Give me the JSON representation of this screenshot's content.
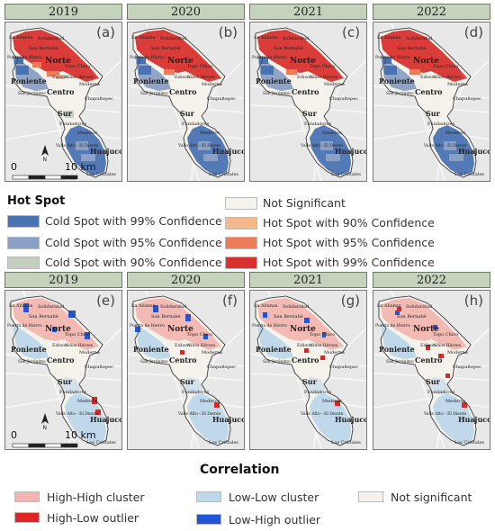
{
  "top_row": {
    "panels": [
      {
        "year": "2019",
        "letter": "(a)",
        "scale": true
      },
      {
        "year": "2020",
        "letter": "(b)",
        "scale": false
      },
      {
        "year": "2021",
        "letter": "(c)",
        "scale": false
      },
      {
        "year": "2022",
        "letter": "(d)",
        "scale": false
      }
    ]
  },
  "bottom_row": {
    "panels": [
      {
        "year": "2019",
        "letter": "(e)",
        "scale": true
      },
      {
        "year": "2020",
        "letter": "(f)",
        "scale": false
      },
      {
        "year": "2021",
        "letter": "(g)",
        "scale": false
      },
      {
        "year": "2022",
        "letter": "(h)",
        "scale": false
      }
    ]
  },
  "scale": {
    "left_label": "0",
    "right_label": "10 km",
    "north": "N"
  },
  "place_labels": {
    "la_alianza": "La Alianza",
    "solidaridad": "Solidaridad",
    "san_bernabe": "San Bernabé",
    "norte": "Norte",
    "puerta_hierro": "Puerta de Hierro",
    "topo_chico": "Topo Chico",
    "ninos_heroes": "Niños Héroes",
    "poniente": "Poniente",
    "edison": "Edison",
    "moderna": "Moderna",
    "san_jeronimo": "San Jerónimo",
    "centro": "Centro",
    "chapultepec": "Chapultepec",
    "sur": "Sur",
    "fundadores": "Fundadores",
    "mederos": "Mederos",
    "valle_alto": "Valle Alto - El Diente",
    "huajuco": "Huajuco",
    "los_cristales": "Los Cristales"
  },
  "hotspot_legend": {
    "title": "Hot Spot",
    "items": [
      {
        "label": "Cold Spot with 99% Confidence",
        "color": "#4a73b3"
      },
      {
        "label": "Cold Spot with 95% Confidence",
        "color": "#8aa0c4"
      },
      {
        "label": "Cold Spot with 90% Confidence",
        "color": "#c5cfbf"
      },
      {
        "label": "Not Significant",
        "color": "#f4f2ea"
      },
      {
        "label": "Hot Spot with 90% Confidence",
        "color": "#f5b98c"
      },
      {
        "label": "Hot Spot with 95% Confidence",
        "color": "#ec7b5a"
      },
      {
        "label": "Hot Spot with 99% Confidence",
        "color": "#d8312f"
      }
    ]
  },
  "correlation_legend": {
    "title": "Correlation",
    "items": [
      {
        "label": "High-High cluster",
        "color": "#f2b6b0"
      },
      {
        "label": "High-Low outlier",
        "color": "#e02424"
      },
      {
        "label": "Low-Low cluster",
        "color": "#bcd6ea"
      },
      {
        "label": "Low-High outlier",
        "color": "#1f55d6"
      },
      {
        "label": "Not significant",
        "color": "#f4f2ea"
      }
    ]
  }
}
